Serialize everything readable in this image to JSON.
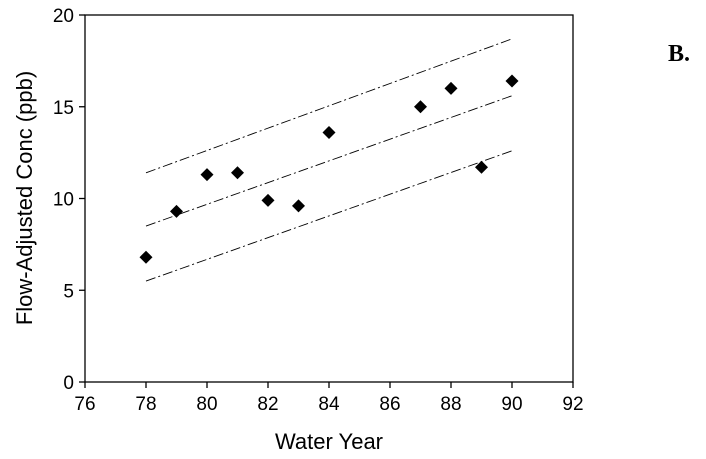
{
  "panel_label": "B.",
  "chart_data": {
    "type": "scatter",
    "xlabel": "Water Year",
    "ylabel": "Flow-Adjusted Conc (ppb)",
    "xlim": [
      76,
      92
    ],
    "ylim": [
      0,
      20
    ],
    "xticks": [
      76,
      78,
      80,
      82,
      84,
      86,
      88,
      90,
      92
    ],
    "yticks": [
      0,
      5,
      10,
      15,
      20
    ],
    "grid": false,
    "series": [
      {
        "marker": "diamond",
        "color": "#000000",
        "points": [
          {
            "x": 78,
            "y": 6.8
          },
          {
            "x": 79,
            "y": 9.3
          },
          {
            "x": 80,
            "y": 11.3
          },
          {
            "x": 81,
            "y": 11.4
          },
          {
            "x": 82,
            "y": 9.9
          },
          {
            "x": 83,
            "y": 9.6
          },
          {
            "x": 84,
            "y": 13.6
          },
          {
            "x": 87,
            "y": 15.0
          },
          {
            "x": 88,
            "y": 16.0
          },
          {
            "x": 89,
            "y": 11.7
          },
          {
            "x": 90,
            "y": 16.4
          }
        ]
      }
    ],
    "lines": [
      {
        "role": "trend",
        "style": "dash-dot",
        "from": {
          "x": 78,
          "y": 8.5
        },
        "to": {
          "x": 90,
          "y": 15.6
        }
      },
      {
        "role": "upper-bound",
        "style": "dash-dot",
        "from": {
          "x": 78,
          "y": 11.4
        },
        "to": {
          "x": 90,
          "y": 18.7
        }
      },
      {
        "role": "lower-bound",
        "style": "dash-dot",
        "from": {
          "x": 78,
          "y": 5.5
        },
        "to": {
          "x": 90,
          "y": 12.6
        }
      }
    ]
  }
}
